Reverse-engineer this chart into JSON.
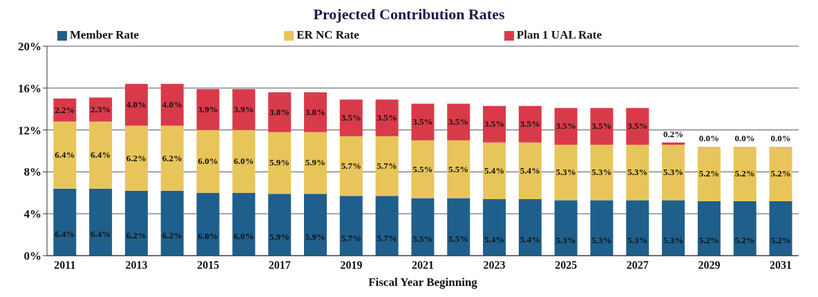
{
  "chart_data": {
    "type": "bar",
    "title": "Projected Contribution Rates",
    "xlabel": "Fiscal Year Beginning",
    "categories": [
      "2011",
      null,
      "2013",
      null,
      "2015",
      null,
      "2017",
      null,
      "2019",
      null,
      "2021",
      null,
      "2023",
      null,
      "2025",
      null,
      "2027",
      null,
      "2029",
      null,
      "2031"
    ],
    "stacked": true,
    "series": [
      {
        "name": "Member Rate",
        "color": "#1f5f8b",
        "values": [
          6.4,
          6.4,
          6.2,
          6.2,
          6.0,
          6.0,
          5.9,
          5.9,
          5.7,
          5.7,
          5.5,
          5.5,
          5.4,
          5.4,
          5.3,
          5.3,
          5.3,
          5.3,
          5.2,
          5.2,
          5.2
        ],
        "value_labels": [
          "6.4%",
          "6.4%",
          "6.2%",
          "6.2%",
          "6.0%",
          "6.0%",
          "5.9%",
          "5.9%",
          "5.7%",
          "5.7%",
          "5.5%",
          "5.5%",
          "5.4%",
          "5.4%",
          "5.3%",
          "5.3%",
          "5.3%",
          "5.3%",
          "5.2%",
          "5.2%",
          "5.2%"
        ]
      },
      {
        "name": "ER NC Rate",
        "color": "#e8c55a",
        "values": [
          6.4,
          6.4,
          6.2,
          6.2,
          6.0,
          6.0,
          5.9,
          5.9,
          5.7,
          5.7,
          5.5,
          5.5,
          5.4,
          5.4,
          5.3,
          5.3,
          5.3,
          5.3,
          5.2,
          5.2,
          5.2
        ],
        "value_labels": [
          "6.4%",
          "6.4%",
          "6.2%",
          "6.2%",
          "6.0%",
          "6.0%",
          "5.9%",
          "5.9%",
          "5.7%",
          "5.7%",
          "5.5%",
          "5.5%",
          "5.4%",
          "5.4%",
          "5.3%",
          "5.3%",
          "5.3%",
          "5.3%",
          "5.2%",
          "5.2%",
          "5.2%"
        ]
      },
      {
        "name": "Plan 1 UAL Rate",
        "color": "#d93a4a",
        "values": [
          2.2,
          2.3,
          4.0,
          4.0,
          3.9,
          3.9,
          3.8,
          3.8,
          3.5,
          3.5,
          3.5,
          3.5,
          3.5,
          3.5,
          3.5,
          3.5,
          3.5,
          0.2,
          0.0,
          0.0,
          0.0
        ],
        "value_labels": [
          "2.2%",
          "2.3%",
          "4.0%",
          "4.0%",
          "3.9%",
          "3.9%",
          "3.8%",
          "3.8%",
          "3.5%",
          "3.5%",
          "3.5%",
          "3.5%",
          "3.5%",
          "3.5%",
          "3.5%",
          "3.5%",
          "3.5%",
          "0.2%",
          "0.0%",
          "0.0%",
          "0.0%"
        ]
      }
    ],
    "ylim": [
      0,
      20
    ],
    "yticks": [
      {
        "value": 0,
        "label": "0%"
      },
      {
        "value": 4,
        "label": "4%"
      },
      {
        "value": 8,
        "label": "8%"
      },
      {
        "value": 12,
        "label": "12%"
      },
      {
        "value": 16,
        "label": "16%"
      },
      {
        "value": 20,
        "label": "20%"
      }
    ],
    "grid": "y",
    "legend": "top"
  }
}
